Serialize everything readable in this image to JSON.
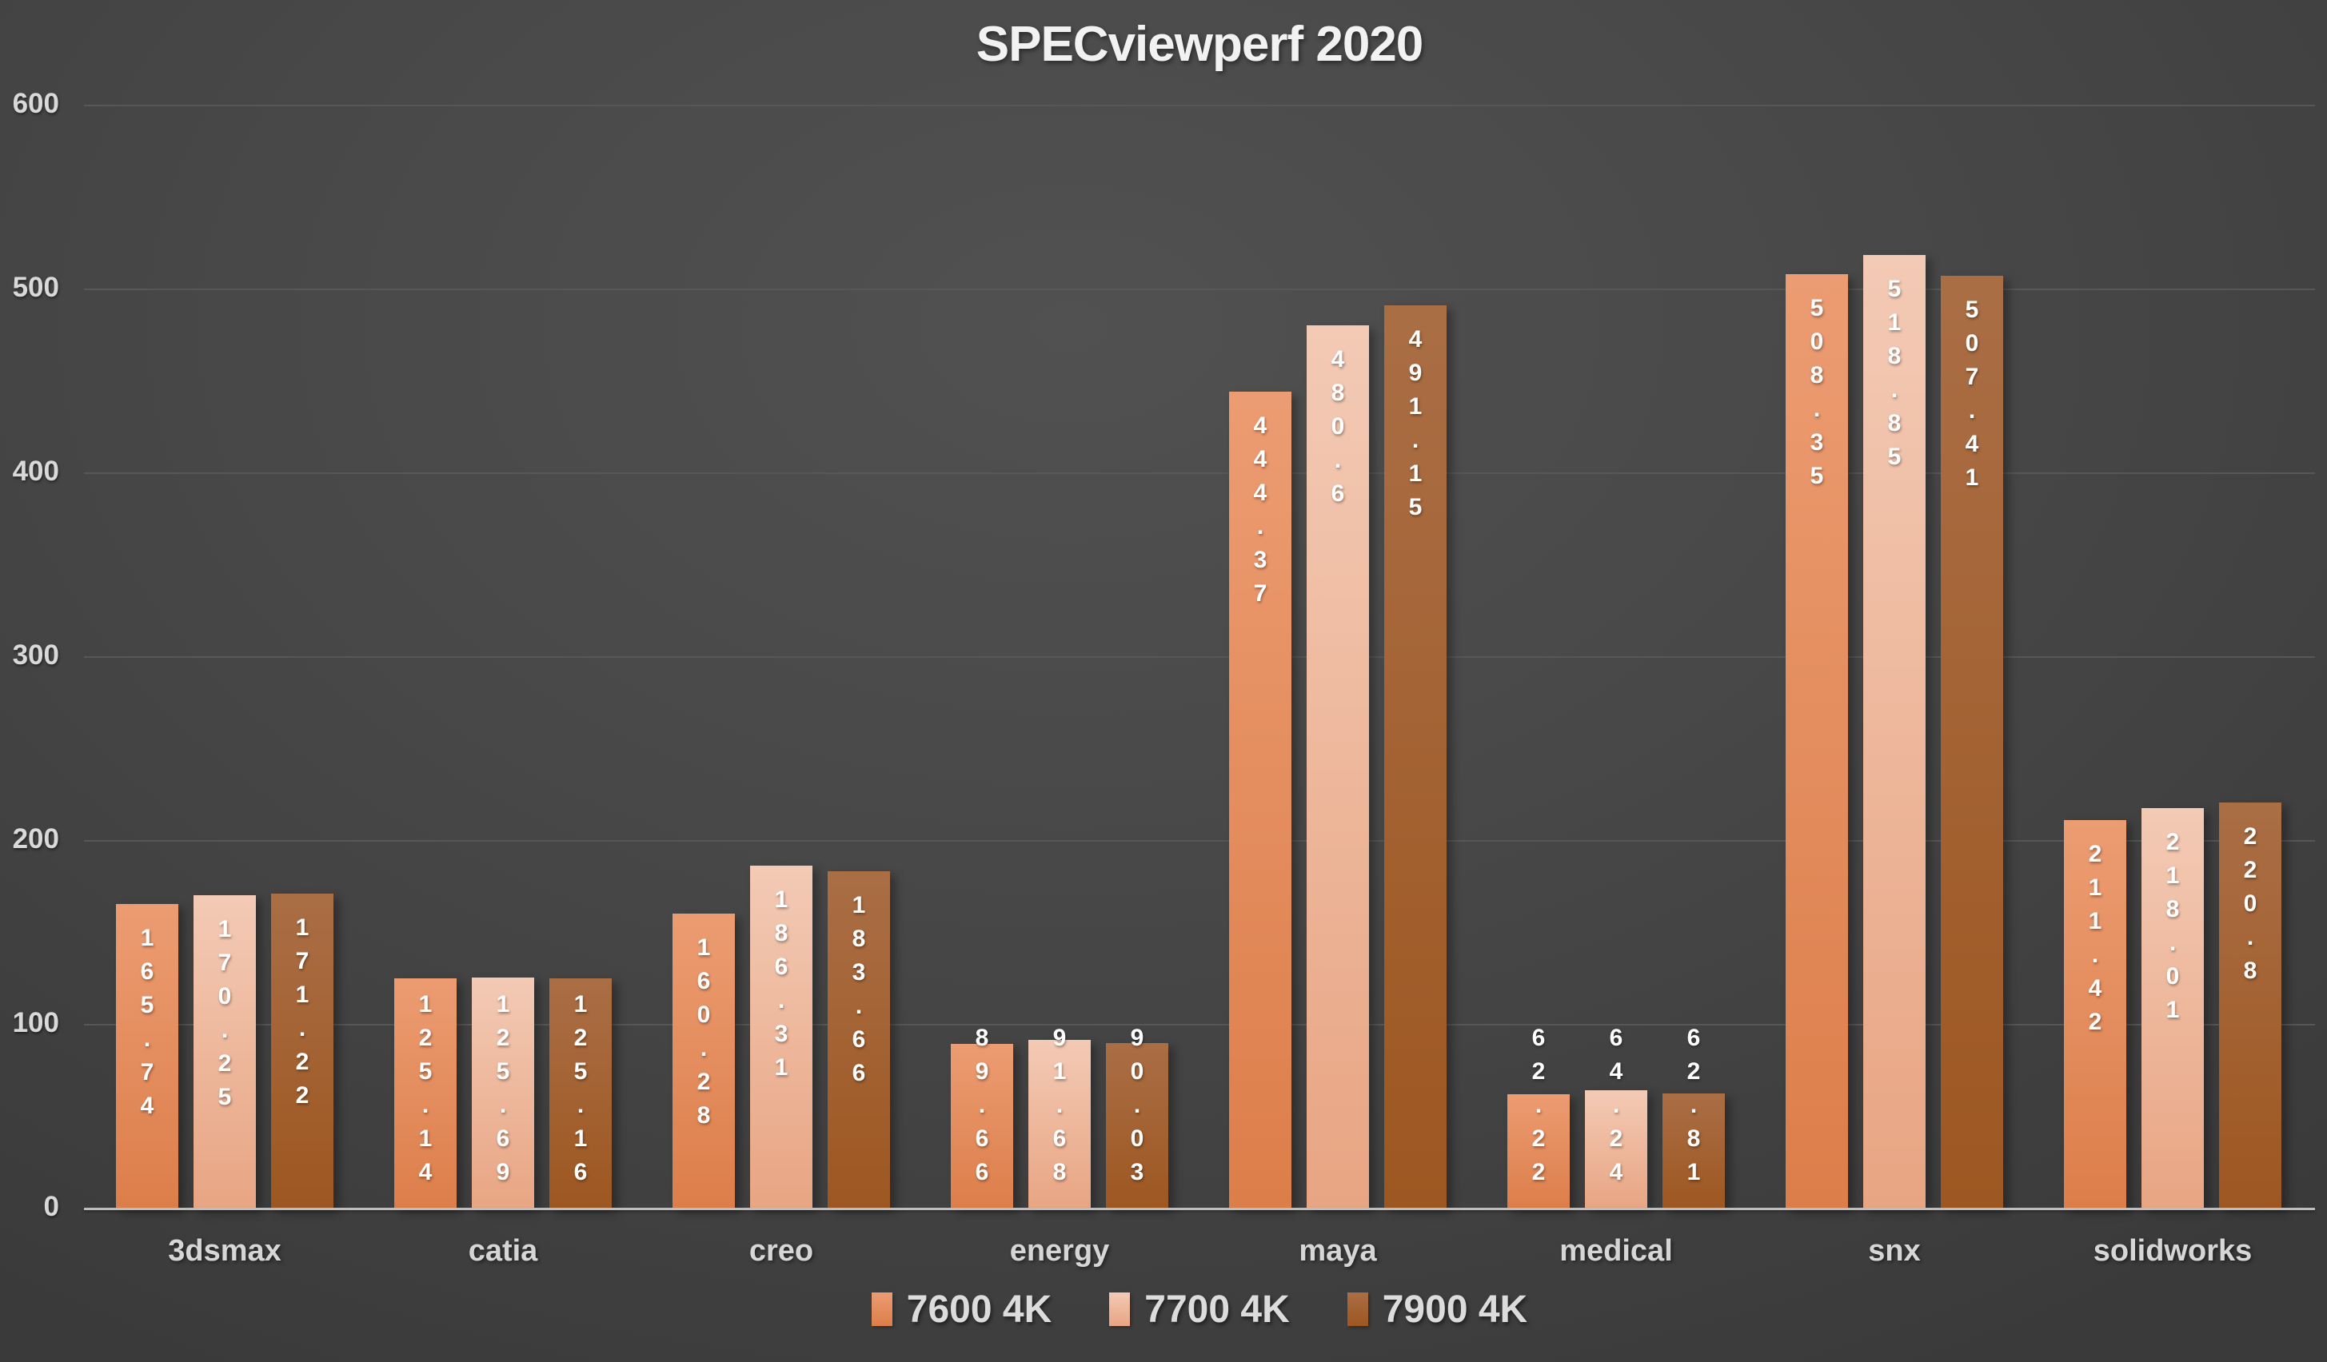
{
  "title": "SPECviewperf 2020",
  "chart_data": {
    "type": "bar",
    "title": "SPECviewperf 2020",
    "categories": [
      "3dsmax",
      "catia",
      "creo",
      "energy",
      "maya",
      "medical",
      "snx",
      "solidworks"
    ],
    "series": [
      {
        "name": "7600 4K",
        "values": [
          "165.74",
          "125.14",
          "160.28",
          "89.66",
          "444.37",
          "62.22",
          "508.35",
          "211.42"
        ],
        "color_top": "#EC9C72",
        "color_bottom": "#DC7E4A",
        "legend_color": "#E28A59"
      },
      {
        "name": "7700 4K",
        "values": [
          "170.25",
          "125.69",
          "186.31",
          "91.68",
          "480.6",
          "64.24",
          "518.85",
          "218.01"
        ],
        "color_top": "#F3CAB5",
        "color_bottom": "#E8A583",
        "legend_color": "#EFB294"
      },
      {
        "name": "7900 4K",
        "values": [
          "171.22",
          "125.16",
          "183.66",
          "90.03",
          "491.15",
          "62.81",
          "507.41",
          "220.8"
        ],
        "color_top": "#AA6E45",
        "color_bottom": "#9D5721",
        "legend_color": "#A85C26"
      }
    ],
    "y_ticks": [
      0,
      100,
      200,
      300,
      400,
      500,
      600
    ],
    "ylim": [
      0,
      600
    ],
    "xlabel": "",
    "ylabel": "",
    "grid": true,
    "legend_position": "bottom",
    "data_labels": "inside-end-vertical-stacked"
  }
}
